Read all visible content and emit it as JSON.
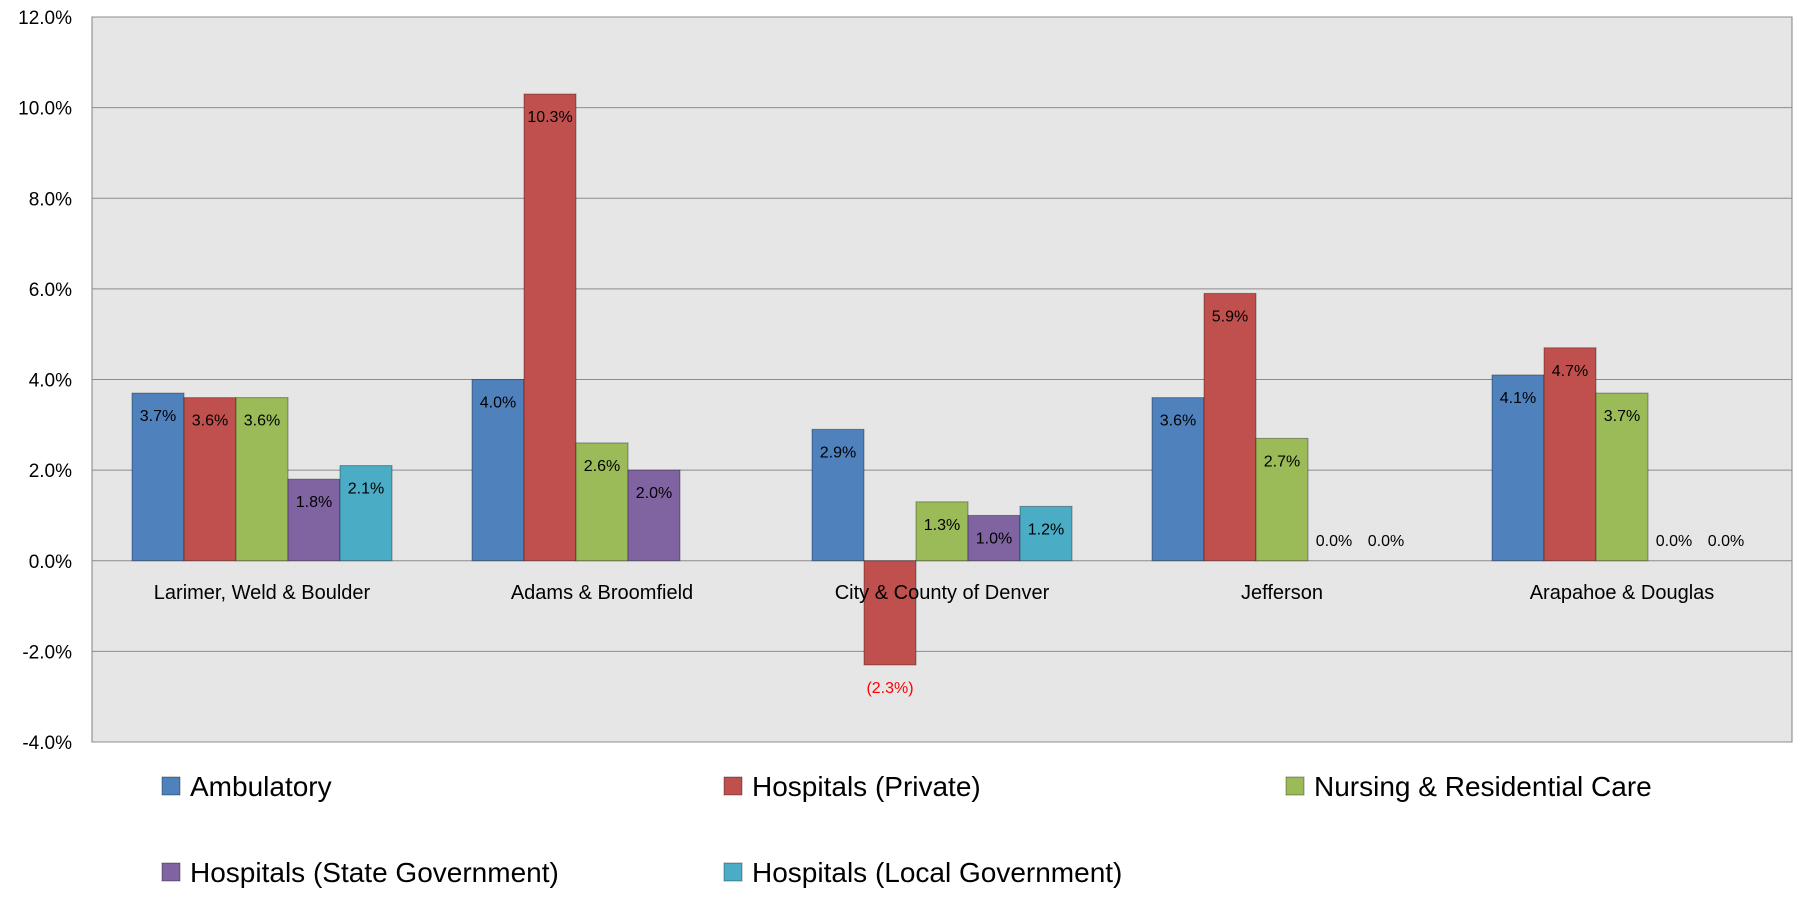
{
  "chart_data": {
    "type": "bar",
    "categories": [
      "Larimer, Weld & Boulder",
      "Adams & Broomfield",
      "City & County of Denver",
      "Jefferson",
      "Arapahoe & Douglas"
    ],
    "series": [
      {
        "name": "Ambulatory",
        "color": "#4F81BD",
        "values": [
          3.7,
          4.0,
          2.9,
          3.6,
          4.1
        ],
        "labels": [
          "3.7%",
          "4.0%",
          "2.9%",
          "3.6%",
          "4.1%"
        ]
      },
      {
        "name": "Hospitals (Private)",
        "color": "#C0504D",
        "values": [
          3.6,
          10.3,
          -2.3,
          5.9,
          4.7
        ],
        "labels": [
          "3.6%",
          "10.3%",
          "(2.3%)",
          "5.9%",
          "4.7%"
        ]
      },
      {
        "name": "Nursing & Residential Care",
        "color": "#9BBB59",
        "values": [
          3.6,
          2.6,
          1.3,
          2.7,
          3.7
        ],
        "labels": [
          "3.6%",
          "2.6%",
          "1.3%",
          "2.7%",
          "3.7%"
        ]
      },
      {
        "name": "Hospitals (State Government)",
        "color": "#8064A2",
        "values": [
          1.8,
          2.0,
          1.0,
          0.0,
          0.0
        ],
        "labels": [
          "1.8%",
          "2.0%",
          "1.0%",
          "0.0%",
          "0.0%"
        ]
      },
      {
        "name": "Hospitals (Local Government)",
        "color": "#4BACC6",
        "values": [
          2.1,
          0.0,
          1.2,
          0.0,
          0.0
        ],
        "labels": [
          "2.1%",
          "",
          "1.2%",
          "0.0%",
          "0.0%"
        ]
      }
    ],
    "y_ticks": [
      "12.0%",
      "10.0%",
      "8.0%",
      "6.0%",
      "4.0%",
      "2.0%",
      "0.0%",
      "-2.0%",
      "-4.0%"
    ],
    "ylim": [
      -4.0,
      12.0
    ],
    "ytick_step": 2.0,
    "grid": true,
    "legend_position": "bottom",
    "plot_background": "#E6E6E6",
    "negative_label_color": "#FF0000"
  }
}
